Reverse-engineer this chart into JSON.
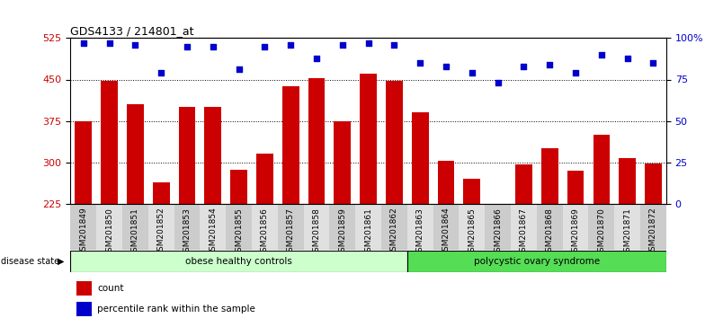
{
  "title": "GDS4133 / 214801_at",
  "categories": [
    "GSM201849",
    "GSM201850",
    "GSM201851",
    "GSM201852",
    "GSM201853",
    "GSM201854",
    "GSM201855",
    "GSM201856",
    "GSM201857",
    "GSM201858",
    "GSM201859",
    "GSM201861",
    "GSM201862",
    "GSM201863",
    "GSM201864",
    "GSM201865",
    "GSM201866",
    "GSM201867",
    "GSM201868",
    "GSM201869",
    "GSM201870",
    "GSM201871",
    "GSM201872"
  ],
  "bar_values": [
    375,
    447,
    405,
    263,
    400,
    400,
    287,
    315,
    437,
    453,
    375,
    461,
    447,
    390,
    303,
    270,
    220,
    296,
    325,
    285,
    350,
    308,
    298
  ],
  "dot_values": [
    97,
    97,
    96,
    79,
    95,
    95,
    81,
    95,
    96,
    88,
    96,
    97,
    96,
    85,
    83,
    79,
    73,
    83,
    84,
    79,
    90,
    88,
    85
  ],
  "bar_color": "#cc0000",
  "dot_color": "#0000cc",
  "ylim_left": [
    225,
    525
  ],
  "ylim_right": [
    0,
    100
  ],
  "yticks_left": [
    225,
    300,
    375,
    450,
    525
  ],
  "yticks_right": [
    0,
    25,
    50,
    75,
    100
  ],
  "ytick_labels_right": [
    "0",
    "25",
    "50",
    "75",
    "100%"
  ],
  "grid_values": [
    300,
    375,
    450
  ],
  "group1_label": "obese healthy controls",
  "group2_label": "polycystic ovary syndrome",
  "group1_count": 13,
  "group2_count": 10,
  "disease_state_label": "disease state",
  "legend_bar_label": "count",
  "legend_dot_label": "percentile rank within the sample",
  "group1_color": "#ccffcc",
  "group2_color": "#55dd55",
  "title_color": "#000000",
  "tick_label_color_left": "#cc0000",
  "tick_label_color_right": "#0000cc",
  "fig_bg": "#ffffff"
}
